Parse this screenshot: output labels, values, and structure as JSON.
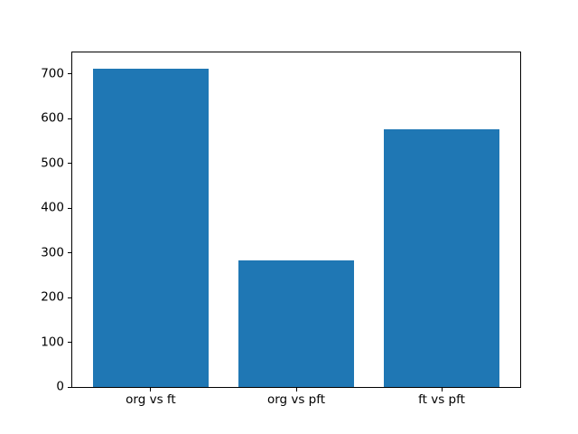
{
  "chart_data": {
    "type": "bar",
    "title": "",
    "xlabel": "",
    "ylabel": "",
    "categories": [
      "org vs ft",
      "org vs pft",
      "ft vs pft"
    ],
    "values": [
      712,
      282,
      575
    ],
    "yticks": [
      0,
      100,
      200,
      300,
      400,
      500,
      600,
      700
    ],
    "ylim": [
      0,
      747.6
    ],
    "bar_width_fraction": 0.8,
    "x_margin_fraction": 0.05,
    "bar_color": "#1f77b4",
    "axis_color": "#000000",
    "background_color": "#ffffff",
    "grid": false,
    "legend": false
  }
}
